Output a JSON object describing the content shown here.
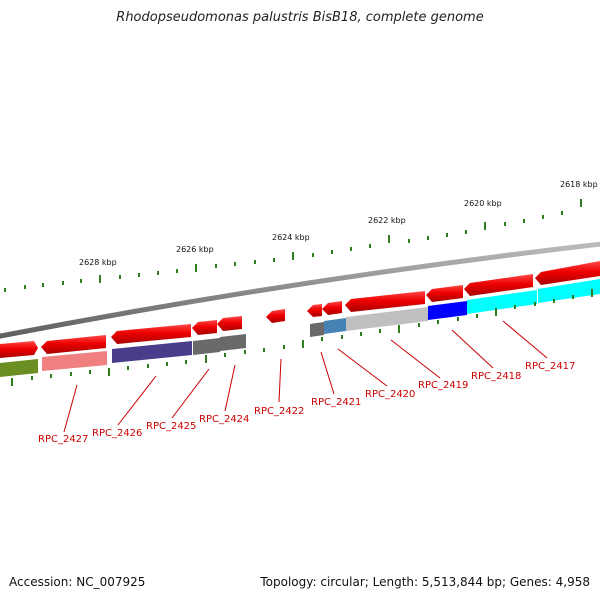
{
  "title": "Rhodopseudomonas palustris BisB18, complete genome",
  "footer": {
    "accession": "Accession: NC_007925",
    "summary": "Topology: circular; Length: 5,513,844 bp; Genes: 4,958"
  },
  "scale_ticks": [
    {
      "label": "2628 kbp"
    },
    {
      "label": "2626 kbp"
    },
    {
      "label": "2624 kbp"
    },
    {
      "label": "2622 kbp"
    },
    {
      "label": "2620 kbp"
    },
    {
      "label": "2618 kbp"
    }
  ],
  "gene_labels": [
    {
      "label": "RPC_2427"
    },
    {
      "label": "RPC_2426"
    },
    {
      "label": "RPC_2425"
    },
    {
      "label": "RPC_2424"
    },
    {
      "label": "RPC_2422"
    },
    {
      "label": "RPC_2421"
    },
    {
      "label": "RPC_2420"
    },
    {
      "label": "RPC_2419"
    },
    {
      "label": "RPC_2418"
    },
    {
      "label": "RPC_2417"
    }
  ],
  "colors": {
    "backbone": "#8a8a8a",
    "gene_arrow": "#ee0000",
    "tick": "#2e7d1f",
    "label": "#cc0000",
    "cog_olive": "#6b8e23",
    "cog_pink": "#f08080",
    "cog_indigo": "#483d8b",
    "cog_gray": "#696969",
    "cog_steel": "#4682b4",
    "cog_silver": "#c0c0c0",
    "cog_blue": "#0000ff",
    "cog_cyan": "#00ffff"
  }
}
